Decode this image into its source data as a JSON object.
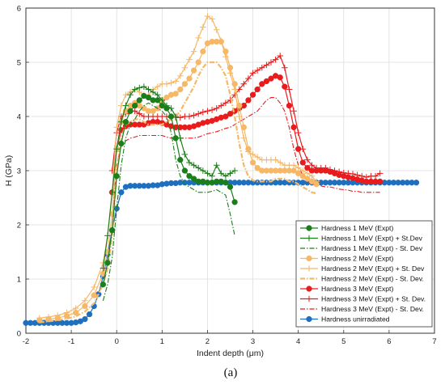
{
  "caption": "(a)",
  "chart_data": {
    "type": "line",
    "title": "",
    "xlabel": "Indent depth (μm)",
    "ylabel": "H (GPa)",
    "xlim": [
      -2,
      7
    ],
    "ylim": [
      0,
      6
    ],
    "xticks": [
      -2,
      -1,
      0,
      1,
      2,
      3,
      4,
      5,
      6,
      7
    ],
    "yticks": [
      0,
      1,
      2,
      3,
      4,
      5,
      6
    ],
    "grid": true,
    "legend_position": "bottom-right",
    "series": [
      {
        "name": "Hardness 1 MeV (Expt)",
        "color": "#1a7f1a",
        "style": "solid",
        "marker": "circle",
        "x": [
          -0.3,
          -0.2,
          -0.1,
          0.0,
          0.1,
          0.2,
          0.3,
          0.4,
          0.5,
          0.6,
          0.7,
          0.8,
          0.9,
          1.0,
          1.1,
          1.2,
          1.3,
          1.4,
          1.5,
          1.6,
          1.7,
          1.8,
          1.9,
          2.0,
          2.1,
          2.2,
          2.3,
          2.4,
          2.5,
          2.6
        ],
        "y": [
          0.9,
          1.3,
          1.9,
          2.9,
          3.5,
          3.9,
          4.1,
          4.2,
          4.3,
          4.38,
          4.35,
          4.3,
          4.3,
          4.2,
          4.15,
          4.0,
          3.6,
          3.2,
          3.0,
          2.9,
          2.85,
          2.8,
          2.8,
          2.78,
          2.78,
          2.8,
          2.8,
          2.78,
          2.7,
          2.42
        ]
      },
      {
        "name": "Hardness 1 MeV (Expt) + St.Dev",
        "color": "#1a7f1a",
        "style": "solid",
        "marker": "plus",
        "x": [
          -0.3,
          -0.2,
          -0.1,
          0.0,
          0.1,
          0.2,
          0.3,
          0.4,
          0.5,
          0.6,
          0.7,
          0.8,
          0.9,
          1.0,
          1.1,
          1.2,
          1.3,
          1.4,
          1.5,
          1.6,
          1.7,
          1.8,
          1.9,
          2.0,
          2.1,
          2.2,
          2.3,
          2.4,
          2.5,
          2.6
        ],
        "y": [
          1.2,
          1.8,
          2.6,
          3.4,
          3.9,
          4.2,
          4.4,
          4.5,
          4.53,
          4.55,
          4.5,
          4.45,
          4.4,
          4.3,
          4.2,
          4.15,
          4.0,
          3.6,
          3.3,
          3.15,
          3.1,
          3.05,
          3.0,
          2.95,
          2.9,
          3.1,
          2.95,
          2.9,
          2.95,
          3.0
        ]
      },
      {
        "name": "Hardness 1 MeV (Expt) - St. Dev",
        "color": "#1a7f1a",
        "style": "dashdot",
        "marker": "none",
        "x": [
          -0.3,
          -0.2,
          -0.1,
          0.0,
          0.1,
          0.2,
          0.3,
          0.4,
          0.5,
          0.6,
          0.7,
          0.8,
          0.9,
          1.0,
          1.1,
          1.2,
          1.3,
          1.4,
          1.5,
          1.6,
          1.7,
          1.8,
          1.9,
          2.0,
          2.1,
          2.2,
          2.3,
          2.4,
          2.5,
          2.6
        ],
        "y": [
          0.6,
          0.9,
          1.4,
          2.3,
          3.1,
          3.6,
          3.85,
          3.95,
          4.1,
          4.2,
          4.25,
          4.2,
          4.15,
          4.1,
          4.0,
          3.7,
          3.2,
          2.9,
          2.75,
          2.7,
          2.65,
          2.6,
          2.6,
          2.6,
          2.62,
          2.65,
          2.6,
          2.55,
          2.2,
          1.8
        ]
      },
      {
        "name": "Hardness 2 MeV (Expt)",
        "color": "#f6b867",
        "style": "solid",
        "marker": "circle",
        "x": [
          -1.7,
          -1.5,
          -1.3,
          -1.1,
          -0.9,
          -0.7,
          -0.5,
          -0.3,
          -0.2,
          -0.1,
          0.0,
          0.1,
          0.2,
          0.3,
          0.4,
          0.5,
          0.6,
          0.7,
          0.8,
          0.9,
          1.0,
          1.1,
          1.2,
          1.3,
          1.4,
          1.5,
          1.6,
          1.7,
          1.8,
          1.9,
          2.0,
          2.1,
          2.2,
          2.3,
          2.4,
          2.5,
          2.6,
          2.7,
          2.8,
          2.9,
          3.0,
          3.1,
          3.2,
          3.3,
          3.4,
          3.5,
          3.6,
          3.7,
          3.8,
          3.9,
          4.0,
          4.1,
          4.2,
          4.3,
          4.4
        ],
        "y": [
          0.24,
          0.26,
          0.28,
          0.32,
          0.38,
          0.5,
          0.7,
          1.1,
          1.5,
          2.2,
          3.4,
          3.9,
          4.1,
          4.2,
          4.25,
          4.2,
          4.15,
          4.1,
          4.1,
          4.15,
          4.3,
          4.35,
          4.4,
          4.42,
          4.5,
          4.6,
          4.7,
          4.85,
          5.0,
          5.2,
          5.35,
          5.38,
          5.38,
          5.38,
          5.2,
          4.9,
          4.6,
          4.2,
          3.8,
          3.4,
          3.15,
          3.05,
          3.0,
          3.0,
          3.0,
          3.0,
          3.0,
          3.0,
          3.0,
          3.0,
          2.95,
          2.9,
          2.85,
          2.8,
          2.75
        ]
      },
      {
        "name": "Hardness 2 MeV (Expt) + St. Dev",
        "color": "#f6b867",
        "style": "solid",
        "marker": "plus",
        "x": [
          -1.7,
          -1.5,
          -1.3,
          -1.1,
          -0.9,
          -0.7,
          -0.5,
          -0.3,
          -0.2,
          -0.1,
          0.0,
          0.1,
          0.2,
          0.3,
          0.4,
          0.5,
          0.6,
          0.7,
          0.8,
          0.9,
          1.0,
          1.1,
          1.2,
          1.3,
          1.4,
          1.5,
          1.6,
          1.7,
          1.8,
          1.9,
          2.0,
          2.1,
          2.2,
          2.3,
          2.4,
          2.5,
          2.6,
          2.7,
          2.8,
          2.9,
          3.0,
          3.1,
          3.2,
          3.3,
          3.4,
          3.5,
          3.6,
          3.7,
          3.8,
          3.9,
          4.0,
          4.1,
          4.2,
          4.3,
          4.4
        ],
        "y": [
          0.28,
          0.3,
          0.33,
          0.38,
          0.46,
          0.6,
          0.85,
          1.3,
          1.8,
          2.6,
          3.8,
          4.2,
          4.4,
          4.45,
          4.5,
          4.45,
          4.4,
          4.4,
          4.5,
          4.55,
          4.6,
          4.6,
          4.62,
          4.65,
          4.75,
          4.9,
          5.05,
          5.2,
          5.45,
          5.65,
          5.85,
          5.8,
          5.6,
          5.4,
          5.1,
          4.8,
          4.5,
          4.0,
          3.6,
          3.35,
          3.3,
          3.25,
          3.2,
          3.2,
          3.2,
          3.2,
          3.15,
          3.1,
          3.1,
          3.1,
          3.05,
          3.0,
          2.95,
          2.9,
          2.8
        ]
      },
      {
        "name": "Hardness 2 MeV (Expt) - St. Dev.",
        "color": "#f6b867",
        "style": "dashdot",
        "marker": "none",
        "x": [
          -1.7,
          -1.5,
          -1.3,
          -1.1,
          -0.9,
          -0.7,
          -0.5,
          -0.3,
          -0.2,
          -0.1,
          0.0,
          0.1,
          0.2,
          0.3,
          0.4,
          0.5,
          0.6,
          0.7,
          0.8,
          0.9,
          1.0,
          1.1,
          1.2,
          1.3,
          1.4,
          1.5,
          1.6,
          1.7,
          1.8,
          1.9,
          2.0,
          2.1,
          2.2,
          2.3,
          2.4,
          2.5,
          2.6,
          2.7,
          2.8,
          2.9,
          3.0,
          3.1,
          3.2,
          3.3,
          3.4,
          3.5,
          3.6,
          3.7,
          3.8,
          3.9,
          4.0,
          4.1,
          4.2,
          4.3,
          4.4
        ],
        "y": [
          0.2,
          0.22,
          0.24,
          0.27,
          0.31,
          0.4,
          0.55,
          0.9,
          1.2,
          1.8,
          3.0,
          3.6,
          3.85,
          3.9,
          3.95,
          3.95,
          3.9,
          3.85,
          3.85,
          3.85,
          3.85,
          3.9,
          3.95,
          4.0,
          4.1,
          4.25,
          4.4,
          4.55,
          4.75,
          4.9,
          5.0,
          5.0,
          5.0,
          4.9,
          4.75,
          4.4,
          4.0,
          3.5,
          3.1,
          2.9,
          2.82,
          2.8,
          2.8,
          2.8,
          2.8,
          2.85,
          2.85,
          2.85,
          2.8,
          2.8,
          2.75,
          2.7,
          2.65,
          2.6,
          2.58
        ]
      },
      {
        "name": "Hardness 3 MeV (Expt)",
        "color": "#e81c1c",
        "style": "solid",
        "marker": "circle",
        "x": [
          -0.1,
          0.0,
          0.1,
          0.2,
          0.3,
          0.4,
          0.5,
          0.6,
          0.7,
          0.8,
          0.9,
          1.0,
          1.1,
          1.2,
          1.3,
          1.4,
          1.5,
          1.6,
          1.7,
          1.8,
          1.9,
          2.0,
          2.1,
          2.2,
          2.3,
          2.4,
          2.5,
          2.6,
          2.7,
          2.8,
          2.9,
          3.0,
          3.1,
          3.2,
          3.3,
          3.4,
          3.5,
          3.6,
          3.7,
          3.8,
          3.9,
          4.0,
          4.1,
          4.2,
          4.3,
          4.4,
          4.5,
          4.6,
          4.7,
          4.8,
          4.9,
          5.0,
          5.1,
          5.2,
          5.3,
          5.4,
          5.5,
          5.6,
          5.7,
          5.8
        ],
        "y": [
          2.6,
          3.4,
          3.75,
          3.82,
          3.85,
          3.85,
          3.85,
          3.85,
          3.88,
          3.9,
          3.9,
          3.88,
          3.85,
          3.82,
          3.8,
          3.8,
          3.8,
          3.8,
          3.82,
          3.85,
          3.88,
          3.9,
          3.92,
          3.95,
          3.98,
          4.0,
          4.05,
          4.1,
          4.15,
          4.2,
          4.3,
          4.4,
          4.5,
          4.6,
          4.65,
          4.7,
          4.75,
          4.72,
          4.55,
          4.2,
          3.8,
          3.4,
          3.15,
          3.05,
          3.0,
          3.0,
          3.0,
          3.0,
          2.98,
          2.95,
          2.92,
          2.9,
          2.88,
          2.86,
          2.84,
          2.82,
          2.8,
          2.8,
          2.8,
          2.8
        ]
      },
      {
        "name": "Hardness 3 MeV (Expt) + St. Dev.",
        "color": "#e81c1c",
        "style": "solid",
        "marker": "plus",
        "x": [
          -0.1,
          0.0,
          0.1,
          0.2,
          0.3,
          0.4,
          0.5,
          0.6,
          0.7,
          0.8,
          0.9,
          1.0,
          1.1,
          1.2,
          1.3,
          1.4,
          1.5,
          1.6,
          1.7,
          1.8,
          1.9,
          2.0,
          2.1,
          2.2,
          2.3,
          2.4,
          2.5,
          2.6,
          2.7,
          2.8,
          2.9,
          3.0,
          3.1,
          3.2,
          3.3,
          3.4,
          3.5,
          3.6,
          3.7,
          3.8,
          3.9,
          4.0,
          4.1,
          4.2,
          4.3,
          4.4,
          4.5,
          4.6,
          4.7,
          4.8,
          4.9,
          5.0,
          5.1,
          5.2,
          5.3,
          5.4,
          5.5,
          5.6,
          5.7,
          5.8
        ],
        "y": [
          3.0,
          3.7,
          4.0,
          4.05,
          4.1,
          4.1,
          4.05,
          4.0,
          4.0,
          4.0,
          4.0,
          4.0,
          4.0,
          3.98,
          3.98,
          3.98,
          4.0,
          4.0,
          4.02,
          4.05,
          4.08,
          4.1,
          4.12,
          4.15,
          4.2,
          4.25,
          4.3,
          4.4,
          4.5,
          4.6,
          4.7,
          4.8,
          4.85,
          4.9,
          4.95,
          5.0,
          5.05,
          5.12,
          4.9,
          4.5,
          4.1,
          3.7,
          3.4,
          3.2,
          3.1,
          3.05,
          3.05,
          3.05,
          3.02,
          3.0,
          2.98,
          2.96,
          2.95,
          2.94,
          2.92,
          2.9,
          2.88,
          2.9,
          2.9,
          2.95
        ]
      },
      {
        "name": "Hardness 3 MeV (Expt) - St. Dev.",
        "color": "#e81c1c",
        "style": "dashdot",
        "marker": "none",
        "x": [
          -0.1,
          0.0,
          0.1,
          0.2,
          0.3,
          0.4,
          0.5,
          0.6,
          0.7,
          0.8,
          0.9,
          1.0,
          1.1,
          1.2,
          1.3,
          1.4,
          1.5,
          1.6,
          1.7,
          1.8,
          1.9,
          2.0,
          2.1,
          2.2,
          2.3,
          2.4,
          2.5,
          2.6,
          2.7,
          2.8,
          2.9,
          3.0,
          3.1,
          3.2,
          3.3,
          3.4,
          3.5,
          3.6,
          3.7,
          3.8,
          3.9,
          4.0,
          4.1,
          4.2,
          4.3,
          4.4,
          4.5,
          4.6,
          4.7,
          4.8,
          4.9,
          5.0,
          5.1,
          5.2,
          5.3,
          5.4,
          5.5,
          5.6,
          5.7,
          5.8
        ],
        "y": [
          2.2,
          3.1,
          3.45,
          3.55,
          3.6,
          3.62,
          3.65,
          3.65,
          3.65,
          3.65,
          3.65,
          3.65,
          3.62,
          3.6,
          3.6,
          3.6,
          3.6,
          3.6,
          3.6,
          3.62,
          3.65,
          3.68,
          3.7,
          3.72,
          3.75,
          3.78,
          3.8,
          3.85,
          3.9,
          3.95,
          4.0,
          4.05,
          4.1,
          4.2,
          4.3,
          4.35,
          4.35,
          4.25,
          4.1,
          3.8,
          3.4,
          3.1,
          2.9,
          2.8,
          2.75,
          2.75,
          2.72,
          2.7,
          2.7,
          2.68,
          2.66,
          2.65,
          2.64,
          2.62,
          2.62,
          2.6,
          2.6,
          2.6,
          2.6,
          2.6
        ]
      },
      {
        "name": "Hardness unirradiated",
        "color": "#1f6fbf",
        "style": "solid",
        "marker": "circle",
        "x": [
          -2.0,
          -1.9,
          -1.8,
          -1.7,
          -1.6,
          -1.5,
          -1.4,
          -1.3,
          -1.2,
          -1.1,
          -1.0,
          -0.9,
          -0.8,
          -0.7,
          -0.6,
          -0.5,
          -0.4,
          -0.3,
          -0.2,
          -0.1,
          0.0,
          0.1,
          0.2,
          0.3,
          0.4,
          0.5,
          0.6,
          0.7,
          0.8,
          0.9,
          1.0,
          1.1,
          1.2,
          1.3,
          1.4,
          1.5,
          1.6,
          1.7,
          1.8,
          1.9,
          2.0,
          2.1,
          2.2,
          2.3,
          2.4,
          2.5,
          2.6,
          2.7,
          2.8,
          2.9,
          3.0,
          3.1,
          3.2,
          3.3,
          3.4,
          3.5,
          3.6,
          3.7,
          3.8,
          3.9,
          4.0,
          4.1,
          4.2,
          4.3,
          4.4,
          4.5,
          4.6,
          4.7,
          4.8,
          4.9,
          5.0,
          5.1,
          5.2,
          5.3,
          5.4,
          5.5,
          5.6,
          5.7,
          5.8,
          5.9,
          6.0,
          6.1,
          6.2,
          6.3,
          6.4,
          6.5,
          6.6
        ],
        "y": [
          0.19,
          0.19,
          0.19,
          0.19,
          0.19,
          0.19,
          0.19,
          0.19,
          0.19,
          0.19,
          0.19,
          0.2,
          0.22,
          0.26,
          0.35,
          0.5,
          0.72,
          1.05,
          1.45,
          1.9,
          2.3,
          2.6,
          2.7,
          2.72,
          2.72,
          2.72,
          2.72,
          2.72,
          2.73,
          2.73,
          2.75,
          2.76,
          2.77,
          2.77,
          2.78,
          2.78,
          2.78,
          2.78,
          2.78,
          2.78,
          2.78,
          2.78,
          2.78,
          2.78,
          2.78,
          2.78,
          2.78,
          2.78,
          2.78,
          2.78,
          2.78,
          2.78,
          2.78,
          2.78,
          2.78,
          2.78,
          2.78,
          2.78,
          2.78,
          2.78,
          2.78,
          2.78,
          2.78,
          2.78,
          2.78,
          2.78,
          2.78,
          2.78,
          2.78,
          2.78,
          2.78,
          2.78,
          2.78,
          2.78,
          2.78,
          2.78,
          2.78,
          2.78,
          2.78,
          2.78,
          2.78,
          2.78,
          2.78,
          2.78,
          2.78,
          2.78,
          2.78
        ]
      }
    ]
  }
}
